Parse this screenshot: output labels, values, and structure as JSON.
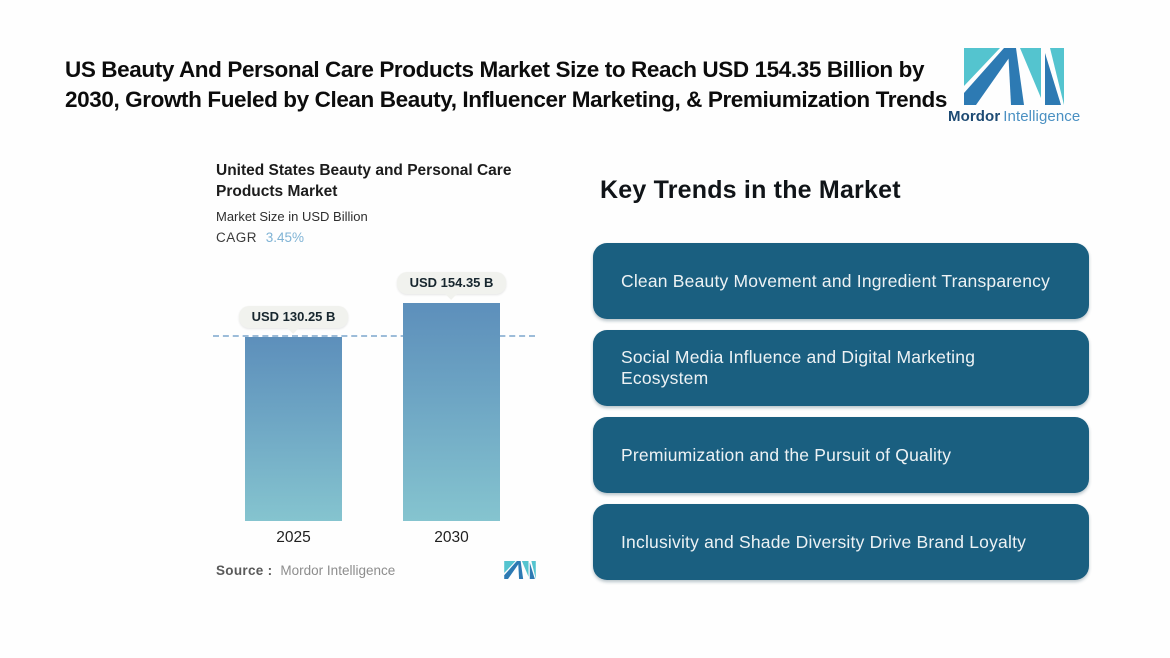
{
  "header": {
    "title_lines": [
      "US Beauty And Personal Care Products Market Size to Reach USD 154.35 Billion by",
      "2030, Growth Fueled by Clean Beauty, Influencer Marketing, & Premiumization Trends"
    ]
  },
  "brand": {
    "name_primary": "Mordor",
    "name_secondary": "Intelligence",
    "logo_dark_blue": "#2d7ab3",
    "logo_teal": "#54c4cf"
  },
  "chart": {
    "title_lines": [
      "United States Beauty and Personal Care",
      "Products Market"
    ],
    "subtitle": "Market Size in USD Billion",
    "cagr_label": "CAGR",
    "cagr_value": "3.45%",
    "source_label": "Source :",
    "source_value": "Mordor Intelligence"
  },
  "chart_data": {
    "type": "bar",
    "title": "United States Beauty and Personal Care Products Market",
    "ylabel": "Market Size in USD Billion",
    "categories": [
      "2025",
      "2030"
    ],
    "values": [
      130.25,
      154.35
    ],
    "bar_labels": [
      "USD 130.25 B",
      "USD 154.35 B"
    ],
    "cagr_pct": 3.45,
    "reference_line": 130.25,
    "grid": false,
    "legend": "none",
    "colors": {
      "bar_gradient_top": "#5d8fbb",
      "bar_gradient_bottom": "#85c4cf",
      "reference_line": "#9cbcd9",
      "value_badge_bg": "#f1f2ee"
    }
  },
  "trends": {
    "heading": "Key Trends in the Market",
    "button_color": "#1a5f80",
    "items": [
      {
        "label": "Clean Beauty Movement and Ingredient Transparency"
      },
      {
        "label": "Social Media Influence and Digital Marketing Ecosystem"
      },
      {
        "label": "Premiumization and the Pursuit of Quality"
      },
      {
        "label": "Inclusivity and Shade Diversity Drive Brand Loyalty"
      }
    ]
  }
}
